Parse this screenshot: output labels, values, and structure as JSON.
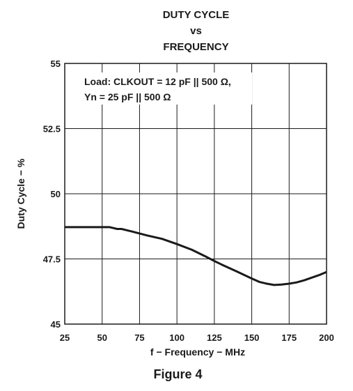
{
  "chart_data": {
    "type": "line",
    "title_lines": [
      "DUTY CYCLE",
      "vs",
      "FREQUENCY"
    ],
    "xlabel": "f − Frequency − MHz",
    "ylabel": "Duty Cycle − %",
    "xlim": [
      25,
      200
    ],
    "ylim": [
      45,
      55
    ],
    "x_ticks": [
      25,
      50,
      75,
      100,
      125,
      150,
      175,
      200
    ],
    "y_ticks": [
      45,
      47.5,
      50,
      52.5,
      55
    ],
    "y_tick_labels": [
      "45",
      "47.5",
      "50",
      "52.5",
      "55"
    ],
    "grid": true,
    "annotation_lines": [
      "Load: CLKOUT = 12 pF || 500 Ω,",
      "Yn = 25 pF || 500 Ω"
    ],
    "series": [
      {
        "x": [
          25,
          40,
          55,
          58,
          60,
          63,
          65,
          70,
          80,
          90,
          100,
          110,
          120,
          125,
          130,
          140,
          150,
          155,
          160,
          165,
          170,
          175,
          180,
          185,
          190,
          195,
          200
        ],
        "y": [
          48.72,
          48.72,
          48.72,
          48.68,
          48.65,
          48.65,
          48.62,
          48.55,
          48.4,
          48.27,
          48.07,
          47.85,
          47.57,
          47.42,
          47.28,
          47.02,
          46.75,
          46.62,
          46.55,
          46.5,
          46.52,
          46.55,
          46.6,
          46.68,
          46.78,
          46.88,
          47.0
        ]
      }
    ]
  },
  "caption": "Figure 4"
}
